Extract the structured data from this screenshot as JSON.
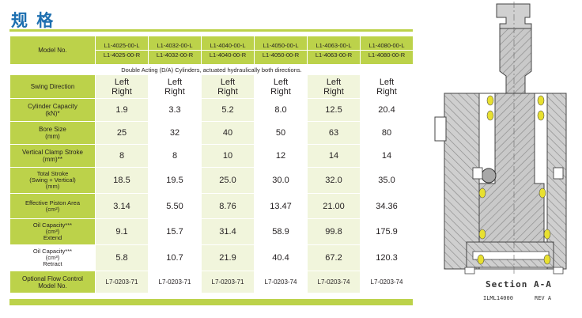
{
  "title": "规 格",
  "header": {
    "model_label": "Model No.",
    "models": [
      {
        "l": "L1-4025-00-L",
        "r": "L1-4025-00-R"
      },
      {
        "l": "L1-4032-00-L",
        "r": "L1-4032-00-R"
      },
      {
        "l": "L1-4040-00-L",
        "r": "L1-4040-00-R"
      },
      {
        "l": "L1-4050-00-L",
        "r": "L1-4050-00-R"
      },
      {
        "l": "L1-4063-00-L",
        "r": "L1-4063-00-R"
      },
      {
        "l": "L1-4080-00-L",
        "r": "L1-4080-00-R"
      }
    ]
  },
  "note": "Double Acting (D/A) Cylinders, actuated hydraulically both directions.",
  "rows": {
    "swing": {
      "label": "Swing Direction",
      "top": "Left",
      "bottom": "Right"
    },
    "capacity": {
      "label1": "Cylinder Capacity",
      "label2": "(kN)*",
      "values": [
        "1.9",
        "3.3",
        "5.2",
        "8.0",
        "12.5",
        "20.4"
      ]
    },
    "bore": {
      "label1": "Bore Size",
      "label2": "(mm)",
      "values": [
        "25",
        "32",
        "40",
        "50",
        "63",
        "80"
      ]
    },
    "stroke": {
      "label1": "Vertical Clamp Stroke",
      "label2": "(mm)**",
      "values": [
        "8",
        "8",
        "10",
        "12",
        "14",
        "14"
      ]
    },
    "total": {
      "label1": "Total Stroke",
      "label2": "(Swing + Vertical)",
      "label3": "(mm)",
      "values": [
        "18.5",
        "19.5",
        "25.0",
        "30.0",
        "32.0",
        "35.0"
      ]
    },
    "area": {
      "label1": "Effective Piston Area",
      "label2": "(cm²)",
      "values": [
        "3.14",
        "5.50",
        "8.76",
        "13.47",
        "21.00",
        "34.36"
      ]
    },
    "oil_extend": {
      "label1": "Oil Capacity***",
      "label2": "(cm³)",
      "label3": "Extend",
      "values": [
        "9.1",
        "15.7",
        "31.4",
        "58.9",
        "99.8",
        "175.9"
      ]
    },
    "oil_retract": {
      "label1": "Oil Capacity***",
      "label2": "(cm³)",
      "label3": "Retract",
      "values": [
        "5.8",
        "10.7",
        "21.9",
        "40.4",
        "67.2",
        "120.3"
      ]
    },
    "flow": {
      "label1": "Optional Flow Control",
      "label2": "Model No.",
      "values": [
        "L7-0203-71",
        "L7-0203-71",
        "L7-0203-71",
        "L7-0203-74",
        "L7-0203-74",
        "L7-0203-74"
      ]
    }
  },
  "drawing": {
    "caption": "Section  A-A",
    "ref": "ILML14000",
    "rev": "REV A"
  },
  "colors": {
    "green": "#bcd24a",
    "blue": "#1d6fb0",
    "seal": "#e8e030"
  }
}
